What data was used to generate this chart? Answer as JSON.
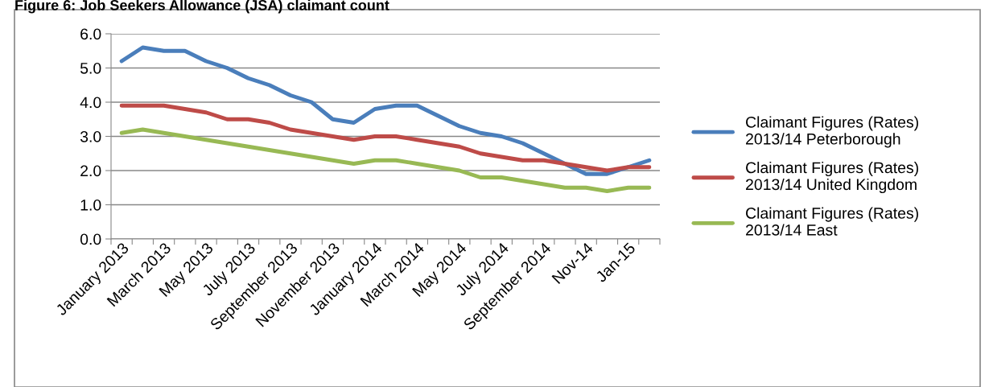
{
  "chart_data": {
    "type": "line",
    "title": "Figure 6: Job Seekers Allowance (JSA) claimant count",
    "categories": [
      "January 2013",
      null,
      "March 2013",
      null,
      "May 2013",
      null,
      "July 2013",
      null,
      "September 2013",
      null,
      "November 2013",
      null,
      "January 2014",
      null,
      "March 2014",
      null,
      "May 2014",
      null,
      "July 2014",
      null,
      "September 2014",
      null,
      "Nov-14",
      null,
      "Jan-15",
      null
    ],
    "series": [
      {
        "name": "Claimant Figures (Rates)\n2013/14 Peterborough",
        "color": "#4a7ebb",
        "values": [
          5.2,
          5.6,
          5.5,
          5.5,
          5.2,
          5.0,
          4.7,
          4.5,
          4.2,
          4.0,
          3.5,
          3.4,
          3.8,
          3.9,
          3.9,
          3.6,
          3.3,
          3.1,
          3.0,
          2.8,
          2.5,
          2.2,
          1.9,
          1.9,
          2.1,
          2.3
        ]
      },
      {
        "name": "Claimant Figures (Rates)\n2013/14 United Kingdom",
        "color": "#be4b48",
        "values": [
          3.9,
          3.9,
          3.9,
          3.8,
          3.7,
          3.5,
          3.5,
          3.4,
          3.2,
          3.1,
          3.0,
          2.9,
          3.0,
          3.0,
          2.9,
          2.8,
          2.7,
          2.5,
          2.4,
          2.3,
          2.3,
          2.2,
          2.1,
          2.0,
          2.1,
          2.1
        ]
      },
      {
        "name": "Claimant Figures (Rates)\n2013/14 East",
        "color": "#98b954",
        "values": [
          3.1,
          3.2,
          3.1,
          3.0,
          2.9,
          2.8,
          2.7,
          2.6,
          2.5,
          2.4,
          2.3,
          2.2,
          2.3,
          2.3,
          2.2,
          2.1,
          2.0,
          1.8,
          1.8,
          1.7,
          1.6,
          1.5,
          1.5,
          1.4,
          1.5,
          1.5
        ]
      }
    ],
    "ylim": [
      0,
      6
    ],
    "yticks": [
      {
        "value": 0,
        "label": "0.0"
      },
      {
        "value": 1,
        "label": "1.0"
      },
      {
        "value": 2,
        "label": "2.0"
      },
      {
        "value": 3,
        "label": "3.0"
      },
      {
        "value": 4,
        "label": "4.0"
      },
      {
        "value": 5,
        "label": "5.0"
      },
      {
        "value": 6,
        "label": "6.0"
      }
    ],
    "grid": "y",
    "legend": "right",
    "marker": "none",
    "line_style": "solid"
  }
}
